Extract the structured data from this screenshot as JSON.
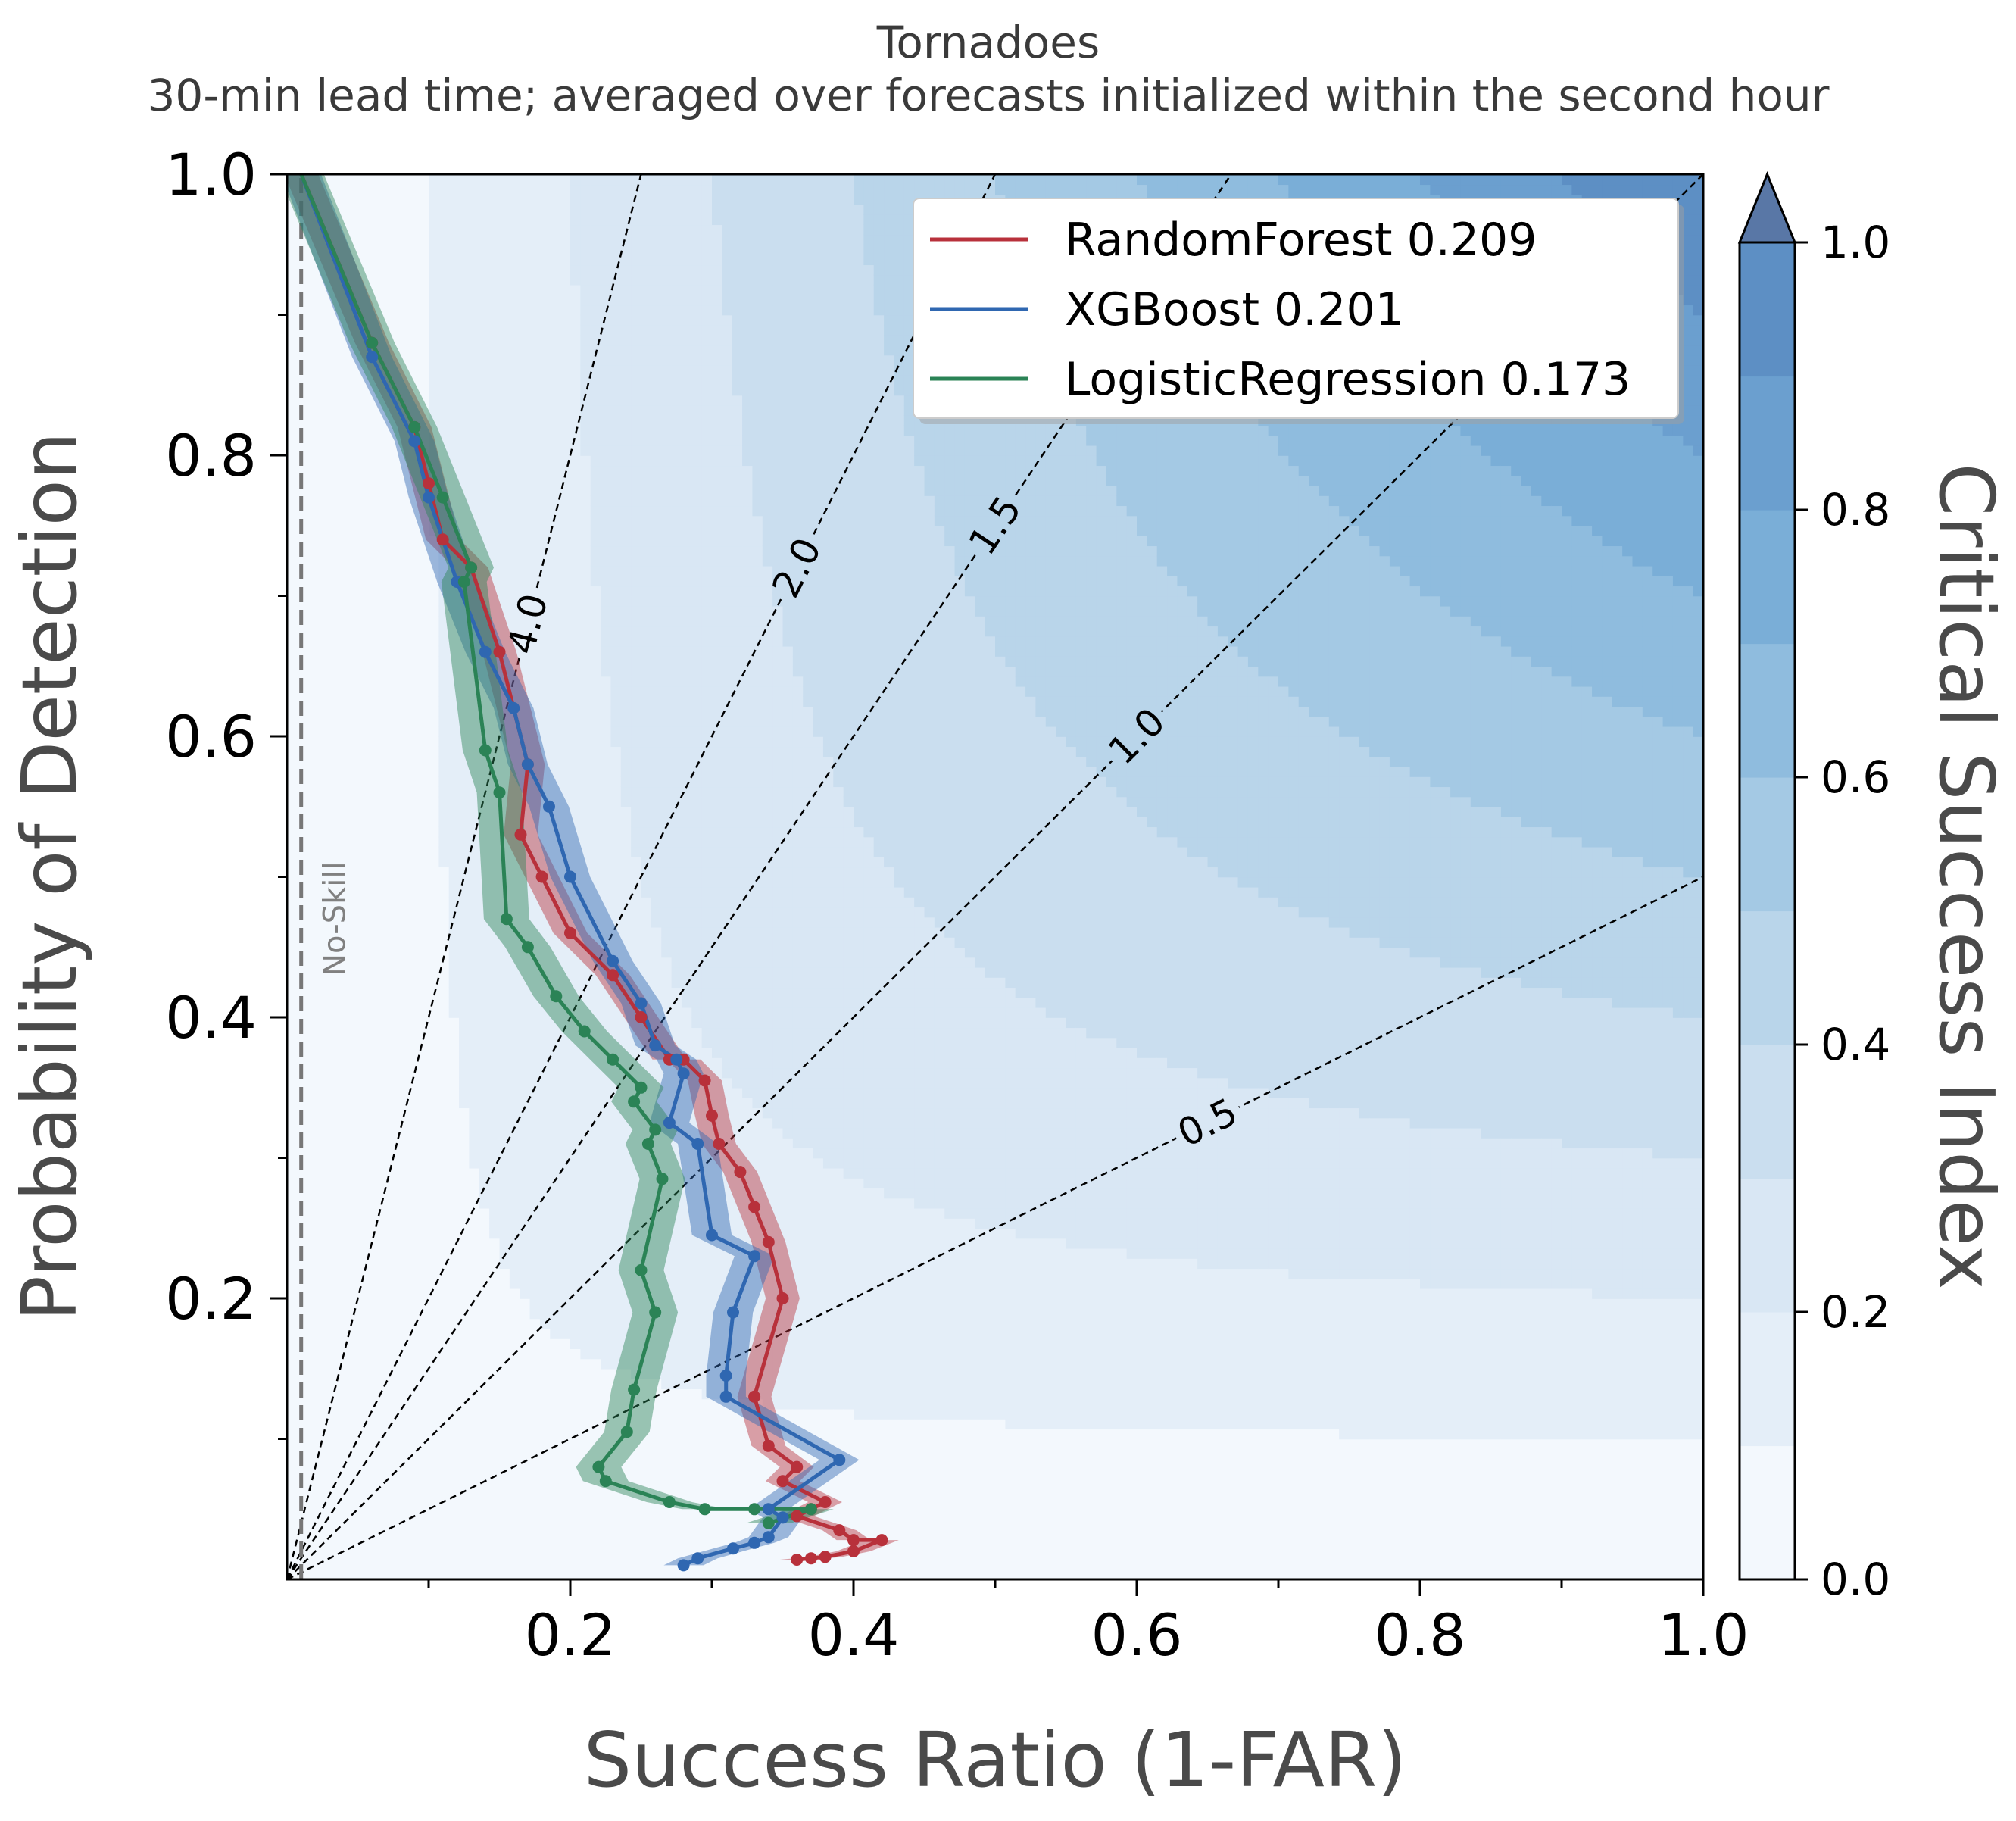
{
  "chart_data": {
    "type": "line",
    "title": "Tornadoes",
    "subtitle": "30-min lead time; averaged over forecasts initialized within the second hour",
    "xlabel": "Success Ratio (1-FAR)",
    "ylabel": "Probability of Detection",
    "xlim": [
      0,
      1
    ],
    "ylim": [
      0,
      1
    ],
    "x_ticks": [
      "0.2",
      "0.4",
      "0.6",
      "0.8",
      "1.0"
    ],
    "y_ticks": [
      "0.2",
      "0.4",
      "0.6",
      "0.8",
      "1.0"
    ],
    "colorbar": {
      "label": "Critical Success Index",
      "ticks": [
        "0.0",
        "0.2",
        "0.4",
        "0.6",
        "0.8",
        "1.0"
      ],
      "levels": [
        0,
        0.1,
        0.2,
        0.3,
        0.4,
        0.5,
        0.6,
        0.7,
        0.8,
        0.9,
        1.0
      ],
      "colors": [
        "#f3f8fd",
        "#e4eef8",
        "#d9e7f4",
        "#cadeef",
        "#b9d5ea",
        "#a4c9e4",
        "#8fbcde",
        "#7aaed7",
        "#6b9fcf",
        "#5d8fc4"
      ],
      "extend_color": "#5977a6"
    },
    "bias_lines": [
      {
        "label": "0.5",
        "bias": 0.5
      },
      {
        "label": "1.0",
        "bias": 1.0
      },
      {
        "label": "1.5",
        "bias": 1.5
      },
      {
        "label": "2.0",
        "bias": 2.0
      },
      {
        "label": "4.0",
        "bias": 4.0
      }
    ],
    "no_skill": {
      "label": "No-Skill",
      "x": 0.01
    },
    "legend_position": "top-right",
    "series": [
      {
        "name": "RandomForest 0.209",
        "color": "#b8313b",
        "band": 0.012,
        "x": [
          0.01,
          0.06,
          0.09,
          0.1,
          0.11,
          0.13,
          0.15,
          0.17,
          0.165,
          0.18,
          0.2,
          0.23,
          0.25,
          0.27,
          0.28,
          0.295,
          0.3,
          0.305,
          0.32,
          0.33,
          0.34,
          0.35,
          0.33,
          0.34,
          0.36,
          0.35,
          0.38,
          0.37,
          0.36,
          0.39,
          0.4,
          0.42,
          0.4,
          0.38,
          0.37,
          0.36
        ],
        "y": [
          1.0,
          0.88,
          0.82,
          0.78,
          0.74,
          0.72,
          0.66,
          0.58,
          0.53,
          0.5,
          0.46,
          0.43,
          0.4,
          0.37,
          0.37,
          0.355,
          0.33,
          0.31,
          0.29,
          0.265,
          0.24,
          0.2,
          0.13,
          0.095,
          0.08,
          0.07,
          0.055,
          0.05,
          0.045,
          0.035,
          0.028,
          0.028,
          0.02,
          0.016,
          0.015,
          0.014
        ]
      },
      {
        "name": "XGBoost 0.201",
        "color": "#2f67b1",
        "band": 0.014,
        "x": [
          0.01,
          0.06,
          0.09,
          0.1,
          0.12,
          0.14,
          0.16,
          0.17,
          0.185,
          0.2,
          0.23,
          0.25,
          0.26,
          0.275,
          0.28,
          0.27,
          0.29,
          0.3,
          0.33,
          0.315,
          0.31,
          0.31,
          0.39,
          0.34,
          0.35,
          0.34,
          0.33,
          0.315,
          0.29,
          0.28
        ],
        "y": [
          1.0,
          0.87,
          0.81,
          0.77,
          0.71,
          0.66,
          0.62,
          0.58,
          0.55,
          0.5,
          0.44,
          0.41,
          0.38,
          0.37,
          0.36,
          0.325,
          0.31,
          0.245,
          0.23,
          0.19,
          0.145,
          0.13,
          0.085,
          0.05,
          0.044,
          0.03,
          0.026,
          0.022,
          0.015,
          0.01
        ]
      },
      {
        "name": "LogisticRegression 0.173",
        "color": "#2b8356",
        "band": 0.016,
        "x": [
          0.01,
          0.06,
          0.09,
          0.11,
          0.13,
          0.125,
          0.14,
          0.15,
          0.155,
          0.17,
          0.19,
          0.21,
          0.23,
          0.25,
          0.245,
          0.26,
          0.255,
          0.265,
          0.25,
          0.26,
          0.245,
          0.24,
          0.22,
          0.225,
          0.27,
          0.295,
          0.33,
          0.37,
          0.34
        ],
        "y": [
          1.0,
          0.88,
          0.82,
          0.77,
          0.72,
          0.71,
          0.59,
          0.56,
          0.47,
          0.45,
          0.415,
          0.39,
          0.37,
          0.35,
          0.34,
          0.32,
          0.31,
          0.285,
          0.22,
          0.19,
          0.135,
          0.105,
          0.08,
          0.07,
          0.055,
          0.05,
          0.05,
          0.05,
          0.04
        ]
      }
    ]
  }
}
